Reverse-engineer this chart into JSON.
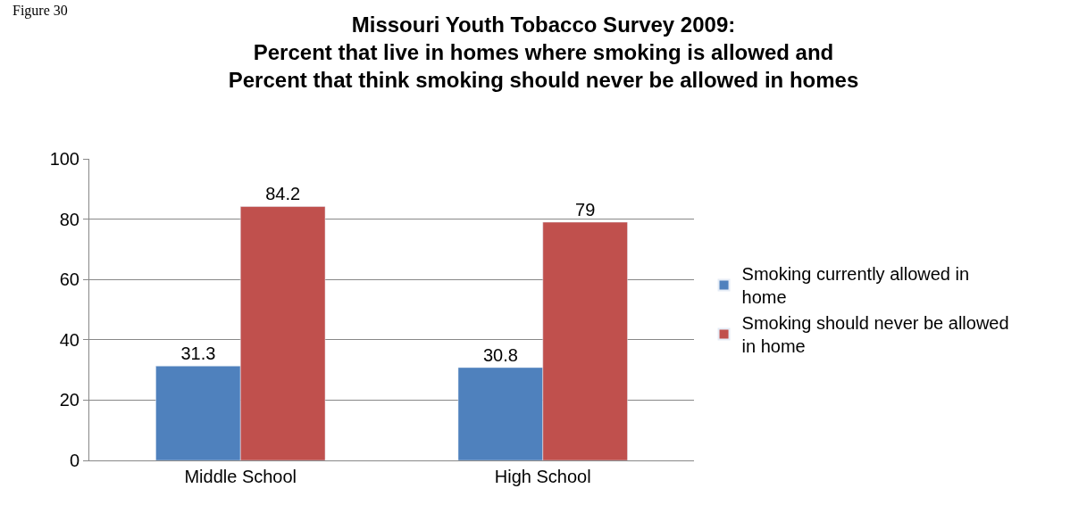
{
  "chart_data": {
    "type": "bar",
    "title": "Missouri Youth Tobacco Survey 2009:\nPercent that live in homes where smoking is allowed and\nPercent that think smoking should never be allowed in homes",
    "annotations": [
      "Figure 30"
    ],
    "categories": [
      "Middle School",
      "High School"
    ],
    "series": [
      {
        "name": "Smoking currently allowed in\nhome",
        "color": "#4f81bd",
        "values": [
          31.3,
          30.8
        ]
      },
      {
        "name": "Smoking should never be allowed\nin home",
        "color": "#c0504d",
        "values": [
          84.2,
          79
        ]
      }
    ],
    "ylim": [
      0,
      100
    ],
    "yticks": [
      0,
      20,
      40,
      60,
      80,
      100
    ],
    "grid": "y",
    "legend": "right",
    "data_labels": true
  }
}
